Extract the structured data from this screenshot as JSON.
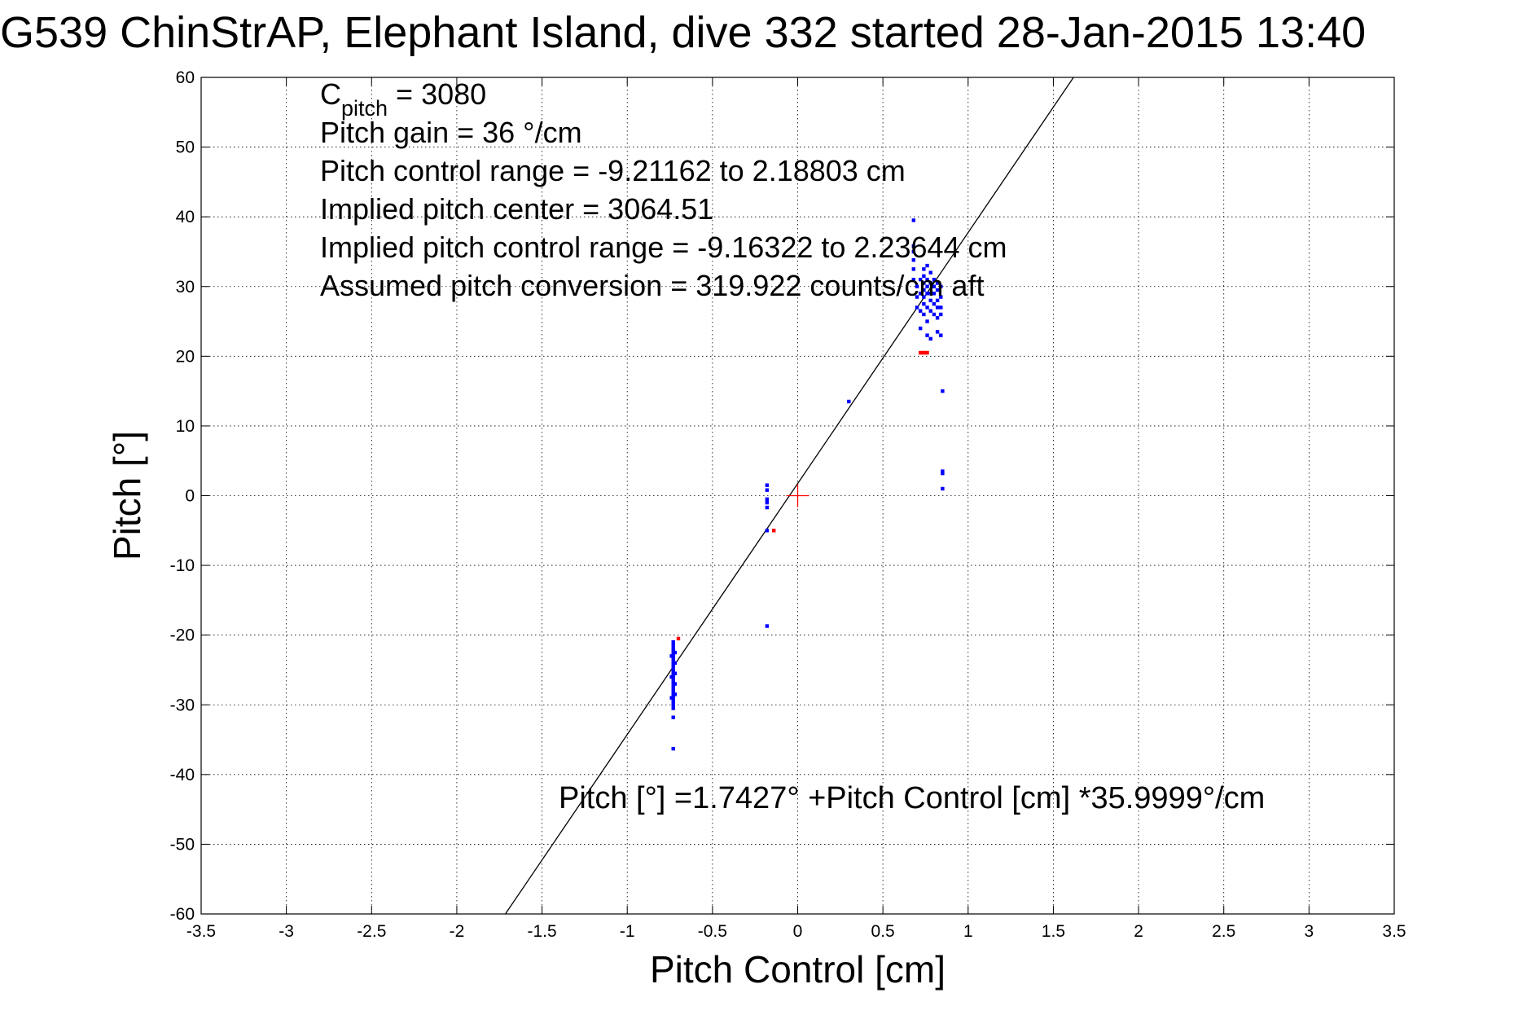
{
  "chart_data": {
    "type": "scatter",
    "title": "G539 ChinStrAP, Elephant Island, dive 332 started 28-Jan-2015 13:40",
    "xlabel": "Pitch Control [cm]",
    "ylabel": "Pitch [°]",
    "xlim": [
      -3.5,
      3.5
    ],
    "ylim": [
      -60,
      60
    ],
    "xticks": [
      -3.5,
      -3,
      -2.5,
      -2,
      -1.5,
      -1,
      -0.5,
      0,
      0.5,
      1,
      1.5,
      2,
      2.5,
      3,
      3.5
    ],
    "yticks": [
      -60,
      -50,
      -40,
      -30,
      -20,
      -10,
      0,
      10,
      20,
      30,
      40,
      50,
      60
    ],
    "xtick_labels": [
      "-3.5",
      "-3",
      "-2.5",
      "-2",
      "-1.5",
      "-1",
      "-0.5",
      "0",
      "0.5",
      "1",
      "1.5",
      "2",
      "2.5",
      "3",
      "3.5"
    ],
    "ytick_labels": [
      "-60",
      "-50",
      "-40",
      "-30",
      "-20",
      "-10",
      "0",
      "10",
      "20",
      "30",
      "40",
      "50",
      "60"
    ],
    "grid": true,
    "fit_line": {
      "intercept": 1.7427,
      "slope": 35.9999,
      "color": "#000000"
    },
    "center_marker": {
      "x": 0,
      "y": 0,
      "color": "#ff0000"
    },
    "annotations": {
      "lines": [
        {
          "main": "C",
          "sub": "pitch",
          "rest": " = 3080"
        },
        {
          "main": "Pitch gain = 36 °/cm"
        },
        {
          "main": "Pitch control range = -9.21162 to 2.18803 cm"
        },
        {
          "main": "Implied pitch center = 3064.51"
        },
        {
          "main": "Implied pitch control range = -9.16322 to 2.23644 cm"
        },
        {
          "main": "Assumed pitch conversion = 319.922 counts/cm aft"
        }
      ],
      "equation": "Pitch [°] =1.7427° +Pitch Control [cm] *35.9999°/cm"
    },
    "series": [
      {
        "color": "#0000ff",
        "points": [
          [
            -0.73,
            -21
          ],
          [
            -0.73,
            -21.5
          ],
          [
            -0.73,
            -22
          ],
          [
            -0.73,
            -22.5
          ],
          [
            -0.73,
            -23
          ],
          [
            -0.73,
            -23.5
          ],
          [
            -0.73,
            -24
          ],
          [
            -0.73,
            -24.5
          ],
          [
            -0.73,
            -25
          ],
          [
            -0.73,
            -25.5
          ],
          [
            -0.73,
            -26
          ],
          [
            -0.73,
            -26.5
          ],
          [
            -0.73,
            -27
          ],
          [
            -0.73,
            -27.5
          ],
          [
            -0.73,
            -28
          ],
          [
            -0.73,
            -28.5
          ],
          [
            -0.73,
            -29
          ],
          [
            -0.73,
            -29.5
          ],
          [
            -0.73,
            -30
          ],
          [
            -0.73,
            -30.5
          ],
          [
            -0.73,
            -31.8
          ],
          [
            -0.73,
            -36.3
          ],
          [
            -0.72,
            -22.5
          ],
          [
            -0.72,
            -24
          ],
          [
            -0.72,
            -25.5
          ],
          [
            -0.72,
            -27
          ],
          [
            -0.72,
            -28.5
          ],
          [
            -0.74,
            -23
          ],
          [
            -0.74,
            -26
          ],
          [
            -0.74,
            -29
          ],
          [
            -0.18,
            1.5
          ],
          [
            -0.18,
            0.8
          ],
          [
            -0.18,
            -0.5
          ],
          [
            -0.18,
            -1
          ],
          [
            -0.18,
            -1.7
          ],
          [
            -0.18,
            -5
          ],
          [
            -0.18,
            -18.7
          ],
          [
            0.3,
            13.5
          ],
          [
            0.68,
            39.5
          ],
          [
            0.68,
            35.8
          ],
          [
            0.68,
            35
          ],
          [
            0.68,
            33.8
          ],
          [
            0.68,
            32.5
          ],
          [
            0.68,
            31
          ],
          [
            0.7,
            30
          ],
          [
            0.7,
            28.5
          ],
          [
            0.7,
            27
          ],
          [
            0.72,
            31
          ],
          [
            0.72,
            29
          ],
          [
            0.72,
            26.5
          ],
          [
            0.72,
            24
          ],
          [
            0.74,
            32.5
          ],
          [
            0.74,
            31.5
          ],
          [
            0.74,
            30.5
          ],
          [
            0.74,
            29.5
          ],
          [
            0.74,
            28.5
          ],
          [
            0.74,
            27.5
          ],
          [
            0.74,
            26
          ],
          [
            0.76,
            33
          ],
          [
            0.76,
            31
          ],
          [
            0.76,
            30
          ],
          [
            0.76,
            29
          ],
          [
            0.76,
            27
          ],
          [
            0.76,
            25
          ],
          [
            0.76,
            23
          ],
          [
            0.78,
            32
          ],
          [
            0.78,
            30.5
          ],
          [
            0.78,
            29
          ],
          [
            0.78,
            28
          ],
          [
            0.78,
            26.5
          ],
          [
            0.78,
            22.5
          ],
          [
            0.8,
            31
          ],
          [
            0.8,
            30
          ],
          [
            0.8,
            29
          ],
          [
            0.8,
            27.5
          ],
          [
            0.8,
            26
          ],
          [
            0.82,
            30.5
          ],
          [
            0.82,
            29.5
          ],
          [
            0.82,
            28
          ],
          [
            0.82,
            27
          ],
          [
            0.82,
            25.5
          ],
          [
            0.82,
            23.5
          ],
          [
            0.84,
            30
          ],
          [
            0.84,
            28.5
          ],
          [
            0.84,
            27
          ],
          [
            0.84,
            26
          ],
          [
            0.84,
            23
          ],
          [
            0.85,
            15
          ],
          [
            0.85,
            3.5
          ],
          [
            0.85,
            3.2
          ],
          [
            0.85,
            1
          ]
        ]
      },
      {
        "color": "#ff0000",
        "points": [
          [
            -0.7,
            -20.5
          ],
          [
            -0.14,
            -5
          ],
          [
            0.72,
            20.5
          ],
          [
            0.73,
            20.5
          ],
          [
            0.74,
            20.5
          ],
          [
            0.75,
            20.5
          ],
          [
            0.76,
            20.5
          ]
        ]
      }
    ]
  }
}
